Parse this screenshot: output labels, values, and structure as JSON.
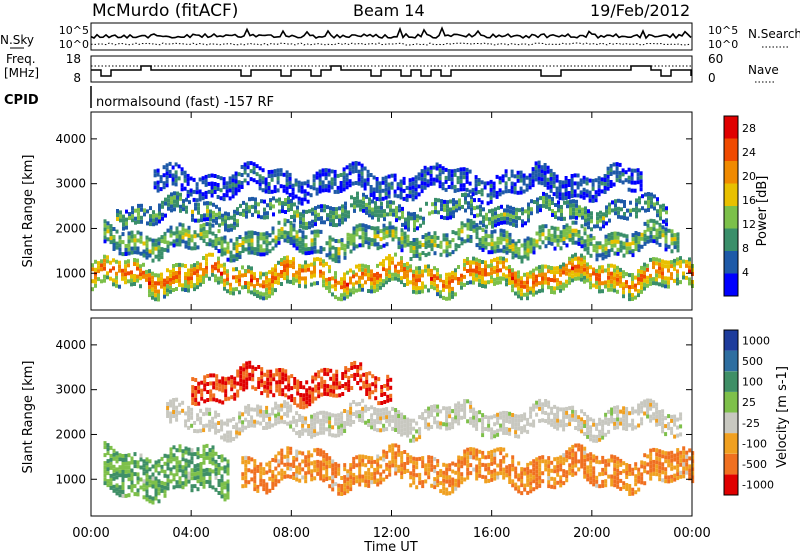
{
  "header": {
    "title": "McMurdo (fitACF)",
    "beam": "Beam 14",
    "date": "19/Feb/2012"
  },
  "noise_panel": {
    "left_label": "N.Sky",
    "right_label": "N.Search",
    "ticks_left": [
      "10^5",
      "10^0"
    ],
    "ticks_right": [
      "10^5",
      "10^0"
    ]
  },
  "freq_panel": {
    "left_label_line1": "Freq.",
    "left_label_line2": "[MHz]",
    "ticks_left": [
      "18",
      "8"
    ],
    "right_label": "Nave",
    "ticks_right": [
      "60",
      "0"
    ]
  },
  "cpid": {
    "label": "CPID",
    "text": "normalsound (fast) -157 RF"
  },
  "x_axis": {
    "title": "Time UT",
    "ticks": [
      "00:00",
      "04:00",
      "08:00",
      "12:00",
      "16:00",
      "20:00",
      "00:00"
    ]
  },
  "chart_data": [
    {
      "type": "heatmap",
      "title": "",
      "xlabel": "Time UT",
      "ylabel": "Slant Range [km]",
      "xlim": [
        0,
        24
      ],
      "ylim": [
        180,
        4600
      ],
      "yticks": [
        "1000",
        "2000",
        "3000",
        "4000"
      ],
      "colorbar": {
        "label": "Power [dB]",
        "range": [
          0,
          30
        ],
        "ticks": [
          "4",
          "8",
          "12",
          "16",
          "20",
          "24",
          "28"
        ],
        "colors": [
          "#0000ff",
          "#1e5aa8",
          "#3a8f6a",
          "#7cc04a",
          "#e8c000",
          "#f08a00",
          "#f04a00",
          "#e00000"
        ]
      },
      "bands": [
        {
          "start_h": 0.0,
          "end_h": 24.0,
          "center_km": 900,
          "width_km": 600,
          "value": 24
        },
        {
          "start_h": 0.5,
          "end_h": 23.5,
          "center_km": 1700,
          "width_km": 500,
          "value": 14
        },
        {
          "start_h": 1.0,
          "end_h": 23.0,
          "center_km": 2350,
          "width_km": 400,
          "value": 12
        },
        {
          "start_h": 2.5,
          "end_h": 22.0,
          "center_km": 3000,
          "width_km": 500,
          "value": 6
        }
      ]
    },
    {
      "type": "heatmap",
      "title": "",
      "xlabel": "Time UT",
      "ylabel": "Slant Range [km]",
      "xlim": [
        0,
        24
      ],
      "ylim": [
        180,
        4600
      ],
      "yticks": [
        "1000",
        "2000",
        "3000",
        "4000"
      ],
      "colorbar": {
        "label": "Velocity [m s-1]",
        "ticks": [
          "1000",
          "500",
          "100",
          "25",
          "-25",
          "-100",
          "-500",
          "-1000"
        ],
        "colors": [
          "#1e3c9c",
          "#2e6ea0",
          "#3f8f66",
          "#7ec04a",
          "#c8c8c0",
          "#f0a020",
          "#f07020",
          "#e00000"
        ]
      },
      "bands": [
        {
          "start_h": 6.0,
          "end_h": 24.0,
          "center_km": 1200,
          "width_km": 700,
          "value": -100
        },
        {
          "start_h": 0.5,
          "end_h": 5.5,
          "center_km": 1100,
          "width_km": 900,
          "value": 100
        },
        {
          "start_h": 3.0,
          "end_h": 23.5,
          "center_km": 2300,
          "width_km": 500,
          "value": 0
        },
        {
          "start_h": 4.0,
          "end_h": 12.0,
          "center_km": 3100,
          "width_km": 600,
          "value": -500
        }
      ]
    }
  ]
}
